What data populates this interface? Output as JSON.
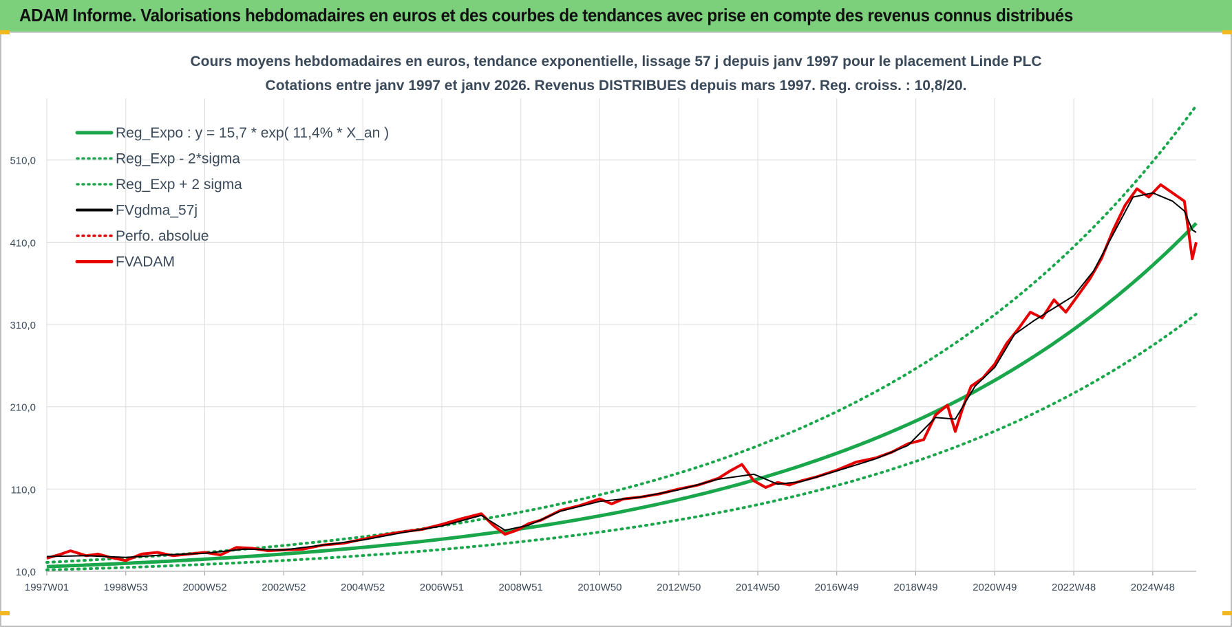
{
  "banner": {
    "title": "ADAM Informe. Valorisations hebdomadaires en euros et des courbes de tendances avec prise en compte des revenus connus distribués"
  },
  "colors": {
    "banner_bg": "#7ccf7b",
    "reg_expo": "#1aa64a",
    "sigma_bands": "#1aa64a",
    "fvgdma": "#000000",
    "perfo": "#e00000",
    "fvadam": "#e60000",
    "grid": "#dcdcdc",
    "text": "#3b4a5a"
  },
  "chart_data": {
    "type": "line",
    "title": "Cours moyens hebdomadaires en euros, tendance exponentielle, lissage 57 j depuis janv 1997 pour le placement Linde PLC",
    "subtitle": "Cotations entre janv 1997 et janv 2026. Revenus DISTRIBUES depuis mars 1997. Reg. croiss. : 10,8/20.",
    "xlabel": "",
    "ylabel": "",
    "x_range": [
      1997.0,
      2026.1
    ],
    "ylim": [
      10,
      585
    ],
    "yticks": [
      10,
      110,
      210,
      310,
      410,
      510
    ],
    "ytick_labels": [
      "10,0",
      "110,0",
      "210,0",
      "310,0",
      "410,0",
      "510,0"
    ],
    "xticks": [
      1997.0,
      1999.0,
      2001.0,
      2003.0,
      2005.0,
      2007.0,
      2009.0,
      2011.0,
      2013.0,
      2015.0,
      2017.0,
      2019.0,
      2021.0,
      2023.0,
      2025.0
    ],
    "xtick_labels": [
      "1997W01",
      "1998W53",
      "2000W52",
      "2002W52",
      "2004W52",
      "2006W51",
      "2008W51",
      "2010W50",
      "2012W50",
      "2014W50",
      "2016W49",
      "2018W49",
      "2020W49",
      "2022W48",
      "2024W48"
    ],
    "grid": true,
    "legend_position": "top-left",
    "legend": [
      {
        "label": "Reg_Expo : y = 15,7 * exp( 11,4% *  X_an )",
        "style": "solid-thick",
        "color": "#1aa64a"
      },
      {
        "label": "Reg_Exp - 2*sigma",
        "style": "dotted",
        "color": "#1aa64a"
      },
      {
        "label": "Reg_Exp + 2 sigma",
        "style": "dotted",
        "color": "#1aa64a"
      },
      {
        "label": "FVgdma_57j",
        "style": "solid",
        "color": "#000000"
      },
      {
        "label": "Perfo. absolue",
        "style": "dotted",
        "color": "#e00000"
      },
      {
        "label": "FVADAM",
        "style": "solid-thick",
        "color": "#e60000"
      }
    ],
    "trend": {
      "a": 15.7,
      "b": 0.114,
      "x0": 1997.0,
      "sigma_factor_low": 0.745,
      "sigma_factor_high": 1.33
    },
    "series": [
      {
        "name": "FVADAM",
        "x": [
          1997.0,
          1997.3,
          1997.6,
          1998.0,
          1998.3,
          1998.6,
          1999.0,
          1999.4,
          1999.8,
          2000.2,
          2000.6,
          2001.0,
          2001.4,
          2001.8,
          2002.2,
          2002.6,
          2003.0,
          2003.5,
          2004.0,
          2004.5,
          2005.0,
          2005.5,
          2006.0,
          2006.5,
          2007.0,
          2007.5,
          2008.0,
          2008.3,
          2008.6,
          2008.9,
          2009.2,
          2009.5,
          2010.0,
          2010.5,
          2011.0,
          2011.3,
          2011.6,
          2012.0,
          2012.5,
          2013.0,
          2013.5,
          2014.0,
          2014.3,
          2014.6,
          2014.9,
          2015.2,
          2015.5,
          2015.8,
          2016.1,
          2016.5,
          2017.0,
          2017.5,
          2018.0,
          2018.4,
          2018.8,
          2019.2,
          2019.5,
          2019.8,
          2020.0,
          2020.2,
          2020.4,
          2020.7,
          2021.0,
          2021.3,
          2021.6,
          2021.9,
          2022.2,
          2022.5,
          2022.8,
          2023.1,
          2023.4,
          2023.7,
          2024.0,
          2024.3,
          2024.6,
          2024.9,
          2025.2,
          2025.5,
          2025.8,
          2026.0,
          2026.1
        ],
        "y": [
          26,
          30,
          35,
          29,
          31,
          27,
          23,
          31,
          33,
          29,
          31,
          33,
          30,
          39,
          38,
          35,
          36,
          37,
          42,
          44,
          49,
          54,
          58,
          61,
          67,
          74,
          80,
          66,
          55,
          60,
          68,
          72,
          84,
          90,
          98,
          92,
          98,
          100,
          104,
          110,
          115,
          123,
          132,
          140,
          120,
          112,
          118,
          115,
          120,
          125,
          133,
          143,
          148,
          155,
          165,
          170,
          200,
          212,
          180,
          210,
          235,
          245,
          262,
          287,
          305,
          325,
          318,
          340,
          325,
          345,
          365,
          390,
          425,
          455,
          475,
          465,
          480,
          470,
          460,
          390,
          410
        ]
      },
      {
        "name": "FVgdma_57j",
        "x": [
          1997.0,
          1998.0,
          1999.0,
          2000.0,
          2001.0,
          2002.0,
          2003.0,
          2004.0,
          2005.0,
          2006.0,
          2007.0,
          2008.0,
          2008.6,
          2009.2,
          2010.0,
          2011.0,
          2012.0,
          2013.0,
          2014.0,
          2014.9,
          2015.5,
          2016.1,
          2017.0,
          2018.0,
          2018.8,
          2019.5,
          2020.0,
          2020.5,
          2021.0,
          2021.5,
          2022.0,
          2022.5,
          2023.0,
          2023.5,
          2024.0,
          2024.5,
          2025.0,
          2025.5,
          2025.8,
          2026.0,
          2026.1
        ],
        "y": [
          28,
          29,
          27,
          30,
          32,
          37,
          36,
          42,
          48,
          57,
          65,
          78,
          60,
          66,
          83,
          95,
          100,
          109,
          122,
          128,
          116,
          119,
          132,
          147,
          163,
          197,
          195,
          235,
          258,
          298,
          315,
          330,
          345,
          375,
          420,
          465,
          470,
          460,
          448,
          425,
          422
        ]
      }
    ]
  }
}
